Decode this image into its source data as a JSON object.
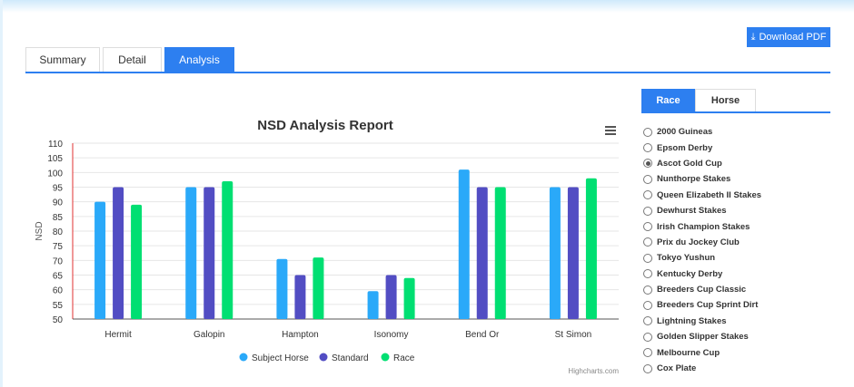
{
  "download_label": "Download PDF",
  "tabs": [
    {
      "label": "Summary"
    },
    {
      "label": "Detail"
    },
    {
      "label": "Analysis"
    }
  ],
  "side_tabs": [
    {
      "label": "Race"
    },
    {
      "label": "Horse"
    }
  ],
  "races": [
    "2000 Guineas",
    "Epsom Derby",
    "Ascot Gold Cup",
    "Nunthorpe Stakes",
    "Queen Elizabeth II Stakes",
    "Dewhurst Stakes",
    "Irish Champion Stakes",
    "Prix du Jockey Club",
    "Tokyo Yushun",
    "Kentucky Derby",
    "Breeders Cup Classic",
    "Breeders Cup Sprint Dirt",
    "Lightning Stakes",
    "Golden Slipper Stakes",
    "Melbourne Cup",
    "Cox Plate"
  ],
  "selected_race": "Ascot Gold Cup",
  "credit": "Highcharts.com",
  "chart_data": {
    "type": "bar",
    "title": "NSD Analysis Report",
    "xlabel": "",
    "ylabel": "NSD",
    "ylim": [
      50,
      110
    ],
    "yticks": [
      50,
      55,
      60,
      65,
      70,
      75,
      80,
      85,
      90,
      95,
      100,
      105,
      110
    ],
    "categories": [
      "Hermit",
      "Galopin",
      "Hampton",
      "Isonomy",
      "Bend Or",
      "St Simon"
    ],
    "series": [
      {
        "name": "Subject Horse",
        "color": "#2aa9f9",
        "values": [
          90,
          95,
          70.5,
          59.5,
          101,
          95
        ]
      },
      {
        "name": "Standard",
        "color": "#524dc3",
        "values": [
          95,
          95,
          65,
          65,
          95,
          95
        ]
      },
      {
        "name": "Race",
        "color": "#00df72",
        "values": [
          89,
          97,
          71,
          64,
          95,
          98
        ]
      }
    ],
    "legend": "bottom-center"
  }
}
